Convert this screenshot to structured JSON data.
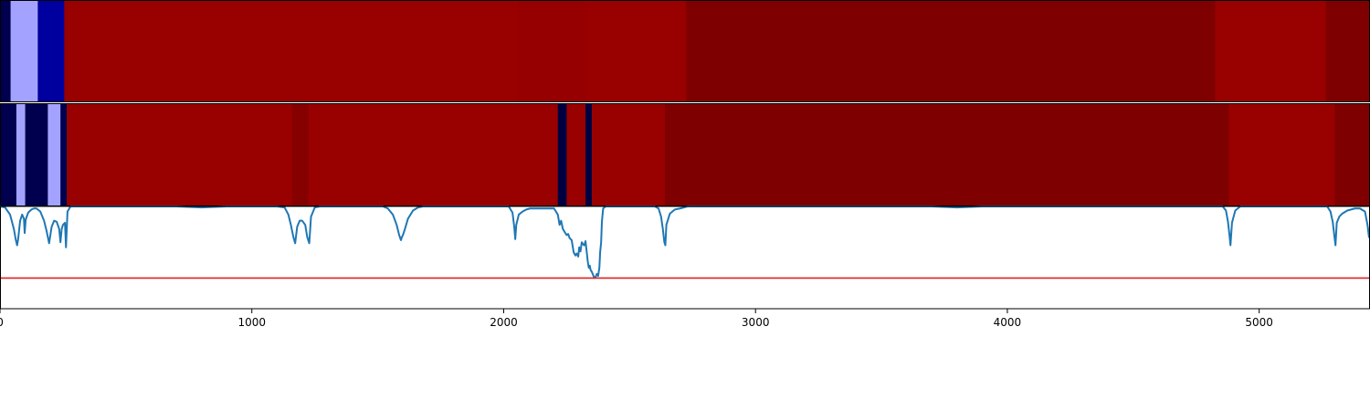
{
  "chart_data": {
    "type": "heatmap",
    "xlim": [
      0,
      5440
    ],
    "x_ticks": [
      0,
      1000,
      2000,
      3000,
      4000,
      5000
    ],
    "x_tick_labels": [
      "0",
      "1000",
      "2000",
      "3000",
      "4000",
      "5000"
    ],
    "colors": {
      "deep_red": "#7f0000",
      "red": "#990000",
      "mid_red": "#960000",
      "light_blue": "#a3a3ff",
      "blue": "#00009e",
      "dark_navy": "#00004e",
      "dark_red": "#870000",
      "black_navy": "#000040",
      "line": "#1f77b4",
      "threshold": "#e02020"
    },
    "track_1": {
      "segments": [
        {
          "start": 0,
          "end": 42,
          "color": "dark_navy"
        },
        {
          "start": 42,
          "end": 150,
          "color": "light_blue"
        },
        {
          "start": 150,
          "end": 255,
          "color": "blue"
        },
        {
          "start": 255,
          "end": 2060,
          "color": "red"
        },
        {
          "start": 2060,
          "end": 2335,
          "color": "mid_red"
        },
        {
          "start": 2335,
          "end": 2725,
          "color": "red"
        },
        {
          "start": 2725,
          "end": 4825,
          "color": "deep_red"
        },
        {
          "start": 4825,
          "end": 5265,
          "color": "red"
        },
        {
          "start": 5265,
          "end": 5440,
          "color": "deep_red"
        }
      ]
    },
    "track_2": {
      "segments": [
        {
          "start": 0,
          "end": 65,
          "color": "dark_navy"
        },
        {
          "start": 65,
          "end": 100,
          "color": "light_blue"
        },
        {
          "start": 100,
          "end": 190,
          "color": "dark_navy"
        },
        {
          "start": 190,
          "end": 240,
          "color": "light_blue"
        },
        {
          "start": 240,
          "end": 265,
          "color": "dark_navy"
        },
        {
          "start": 265,
          "end": 1160,
          "color": "red"
        },
        {
          "start": 1160,
          "end": 1225,
          "color": "dark_red"
        },
        {
          "start": 1225,
          "end": 2215,
          "color": "red"
        },
        {
          "start": 2215,
          "end": 2250,
          "color": "black_navy"
        },
        {
          "start": 2250,
          "end": 2325,
          "color": "red"
        },
        {
          "start": 2325,
          "end": 2350,
          "color": "black_navy"
        },
        {
          "start": 2350,
          "end": 2640,
          "color": "red"
        },
        {
          "start": 2640,
          "end": 4880,
          "color": "deep_red"
        },
        {
          "start": 4880,
          "end": 5300,
          "color": "red"
        },
        {
          "start": 5300,
          "end": 5440,
          "color": "deep_red"
        }
      ]
    },
    "line_series": {
      "ylim": [
        0,
        1
      ],
      "threshold": 0.3,
      "points": [
        [
          0,
          1.0
        ],
        [
          20,
          0.99
        ],
        [
          40,
          0.92
        ],
        [
          55,
          0.78
        ],
        [
          63,
          0.67
        ],
        [
          68,
          0.62
        ],
        [
          72,
          0.68
        ],
        [
          80,
          0.86
        ],
        [
          88,
          0.92
        ],
        [
          95,
          0.88
        ],
        [
          98,
          0.74
        ],
        [
          102,
          0.87
        ],
        [
          112,
          0.94
        ],
        [
          125,
          0.97
        ],
        [
          135,
          0.98
        ],
        [
          145,
          0.98
        ],
        [
          160,
          0.95
        ],
        [
          175,
          0.86
        ],
        [
          185,
          0.76
        ],
        [
          195,
          0.64
        ],
        [
          205,
          0.8
        ],
        [
          215,
          0.86
        ],
        [
          225,
          0.85
        ],
        [
          235,
          0.78
        ],
        [
          240,
          0.65
        ],
        [
          245,
          0.78
        ],
        [
          250,
          0.82
        ],
        [
          258,
          0.84
        ],
        [
          262,
          0.6
        ],
        [
          268,
          0.95
        ],
        [
          280,
          1.0
        ],
        [
          700,
          1.0
        ],
        [
          800,
          0.99
        ],
        [
          900,
          1.0
        ],
        [
          1100,
          1.0
        ],
        [
          1130,
          0.99
        ],
        [
          1145,
          0.92
        ],
        [
          1155,
          0.82
        ],
        [
          1165,
          0.7
        ],
        [
          1172,
          0.64
        ],
        [
          1180,
          0.8
        ],
        [
          1190,
          0.86
        ],
        [
          1200,
          0.86
        ],
        [
          1212,
          0.82
        ],
        [
          1220,
          0.7
        ],
        [
          1228,
          0.64
        ],
        [
          1235,
          0.9
        ],
        [
          1250,
          0.99
        ],
        [
          1270,
          1.0
        ],
        [
          1520,
          1.0
        ],
        [
          1540,
          0.98
        ],
        [
          1560,
          0.92
        ],
        [
          1575,
          0.82
        ],
        [
          1585,
          0.72
        ],
        [
          1592,
          0.67
        ],
        [
          1596,
          0.7
        ],
        [
          1600,
          0.72
        ],
        [
          1608,
          0.78
        ],
        [
          1620,
          0.88
        ],
        [
          1640,
          0.96
        ],
        [
          1660,
          0.99
        ],
        [
          1680,
          1.0
        ],
        [
          2020,
          1.0
        ],
        [
          2035,
          0.94
        ],
        [
          2042,
          0.8
        ],
        [
          2046,
          0.68
        ],
        [
          2050,
          0.82
        ],
        [
          2060,
          0.92
        ],
        [
          2075,
          0.95
        ],
        [
          2090,
          0.97
        ],
        [
          2105,
          0.98
        ],
        [
          2200,
          0.98
        ],
        [
          2215,
          0.92
        ],
        [
          2222,
          0.82
        ],
        [
          2228,
          0.86
        ],
        [
          2235,
          0.78
        ],
        [
          2242,
          0.75
        ],
        [
          2250,
          0.72
        ],
        [
          2256,
          0.73
        ],
        [
          2262,
          0.69
        ],
        [
          2270,
          0.67
        ],
        [
          2278,
          0.55
        ],
        [
          2285,
          0.52
        ],
        [
          2290,
          0.54
        ],
        [
          2296,
          0.51
        ],
        [
          2300,
          0.6
        ],
        [
          2305,
          0.56
        ],
        [
          2310,
          0.65
        ],
        [
          2315,
          0.63
        ],
        [
          2320,
          0.62
        ],
        [
          2325,
          0.66
        ],
        [
          2330,
          0.55
        ],
        [
          2334,
          0.46
        ],
        [
          2338,
          0.4
        ],
        [
          2342,
          0.42
        ],
        [
          2345,
          0.38
        ],
        [
          2350,
          0.36
        ],
        [
          2355,
          0.33
        ],
        [
          2360,
          0.3
        ],
        [
          2365,
          0.31
        ],
        [
          2370,
          0.34
        ],
        [
          2375,
          0.32
        ],
        [
          2380,
          0.4
        ],
        [
          2383,
          0.55
        ],
        [
          2387,
          0.65
        ],
        [
          2390,
          0.85
        ],
        [
          2395,
          0.98
        ],
        [
          2405,
          1.0
        ],
        [
          2600,
          1.0
        ],
        [
          2615,
          0.98
        ],
        [
          2625,
          0.9
        ],
        [
          2632,
          0.78
        ],
        [
          2638,
          0.65
        ],
        [
          2642,
          0.62
        ],
        [
          2646,
          0.82
        ],
        [
          2660,
          0.93
        ],
        [
          2680,
          0.97
        ],
        [
          2700,
          0.98
        ],
        [
          2730,
          1.0
        ],
        [
          3700,
          1.0
        ],
        [
          3800,
          0.99
        ],
        [
          3900,
          1.0
        ],
        [
          4855,
          1.0
        ],
        [
          4868,
          0.96
        ],
        [
          4876,
          0.85
        ],
        [
          4882,
          0.72
        ],
        [
          4886,
          0.62
        ],
        [
          4892,
          0.84
        ],
        [
          4905,
          0.96
        ],
        [
          4925,
          1.0
        ],
        [
          5270,
          1.0
        ],
        [
          5283,
          0.95
        ],
        [
          5292,
          0.85
        ],
        [
          5298,
          0.72
        ],
        [
          5303,
          0.62
        ],
        [
          5308,
          0.84
        ],
        [
          5318,
          0.9
        ],
        [
          5330,
          0.93
        ],
        [
          5350,
          0.96
        ],
        [
          5380,
          0.98
        ],
        [
          5400,
          0.98
        ],
        [
          5420,
          0.95
        ],
        [
          5430,
          0.82
        ],
        [
          5436,
          0.7
        ],
        [
          5440,
          0.8
        ]
      ]
    }
  }
}
